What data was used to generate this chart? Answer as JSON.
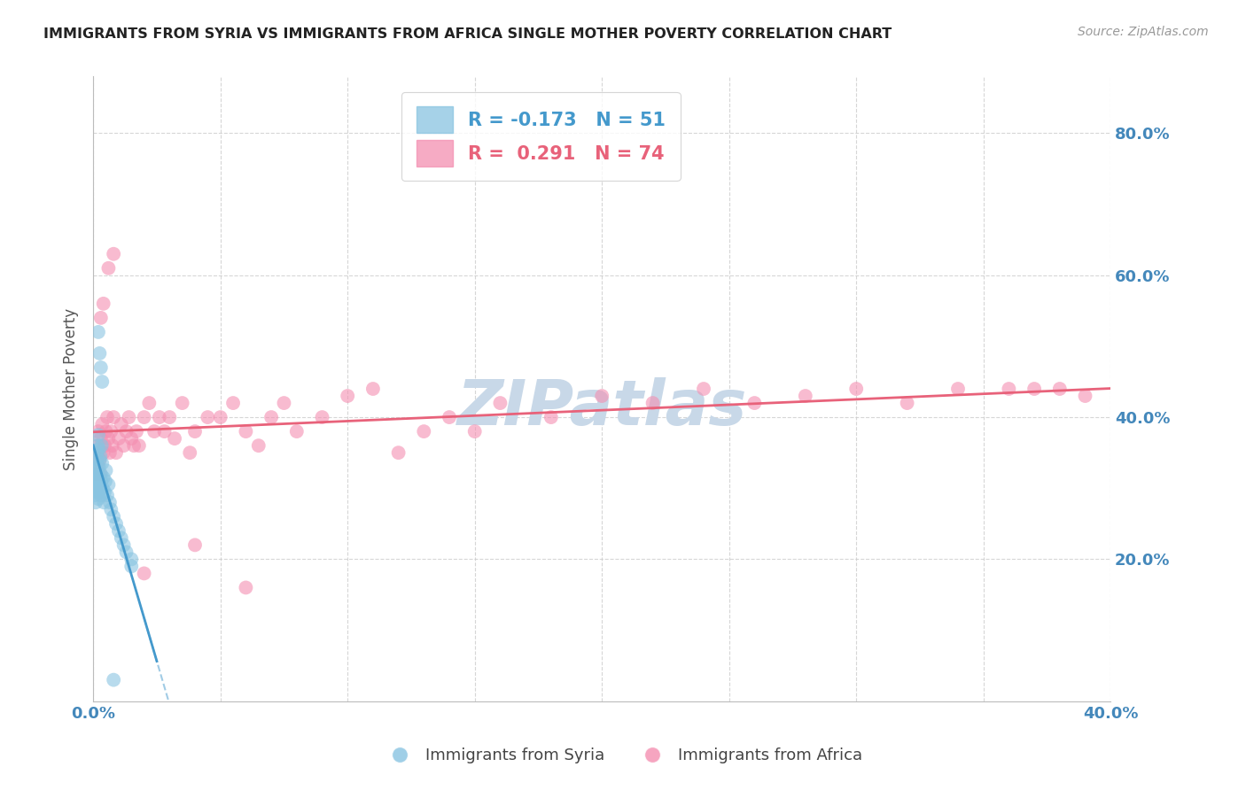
{
  "title": "IMMIGRANTS FROM SYRIA VS IMMIGRANTS FROM AFRICA SINGLE MOTHER POVERTY CORRELATION CHART",
  "source": "Source: ZipAtlas.com",
  "ylabel": "Single Mother Poverty",
  "right_yticks": [
    "80.0%",
    "60.0%",
    "40.0%",
    "20.0%"
  ],
  "right_ytick_vals": [
    0.8,
    0.6,
    0.4,
    0.2
  ],
  "xmin": 0.0,
  "xmax": 0.4,
  "ymin": 0.0,
  "ymax": 0.88,
  "syria_R": -0.173,
  "syria_N": 51,
  "africa_R": 0.291,
  "africa_N": 74,
  "syria_color": "#89c4e1",
  "africa_color": "#f48fb1",
  "syria_line_color": "#4499cc",
  "africa_line_color": "#e8627a",
  "syria_scatter_alpha": 0.6,
  "africa_scatter_alpha": 0.6,
  "background_color": "#ffffff",
  "grid_color": "#cccccc",
  "title_color": "#222222",
  "axis_label_color": "#4488bb",
  "watermark_text": "ZIPatlas",
  "watermark_color": "#c8d8e8",
  "syria_x": [
    0.0005,
    0.0006,
    0.0008,
    0.001,
    0.001,
    0.0012,
    0.0013,
    0.0015,
    0.0015,
    0.0016,
    0.0017,
    0.0018,
    0.0019,
    0.002,
    0.002,
    0.0021,
    0.0022,
    0.0023,
    0.0024,
    0.0025,
    0.0026,
    0.0027,
    0.0028,
    0.003,
    0.0031,
    0.0032,
    0.0033,
    0.0035,
    0.0037,
    0.004,
    0.0042,
    0.0045,
    0.0048,
    0.005,
    0.0055,
    0.006,
    0.0065,
    0.007,
    0.008,
    0.009,
    0.01,
    0.011,
    0.012,
    0.013,
    0.015,
    0.002,
    0.0025,
    0.003,
    0.0035,
    0.015,
    0.008
  ],
  "syria_y": [
    0.31,
    0.29,
    0.32,
    0.33,
    0.28,
    0.295,
    0.315,
    0.305,
    0.35,
    0.34,
    0.325,
    0.36,
    0.3,
    0.285,
    0.375,
    0.31,
    0.355,
    0.33,
    0.295,
    0.315,
    0.34,
    0.3,
    0.345,
    0.32,
    0.29,
    0.31,
    0.36,
    0.335,
    0.3,
    0.315,
    0.28,
    0.295,
    0.31,
    0.325,
    0.29,
    0.305,
    0.28,
    0.27,
    0.26,
    0.25,
    0.24,
    0.23,
    0.22,
    0.21,
    0.19,
    0.52,
    0.49,
    0.47,
    0.45,
    0.2,
    0.03
  ],
  "africa_x": [
    0.001,
    0.0015,
    0.0018,
    0.002,
    0.0022,
    0.0025,
    0.0028,
    0.003,
    0.0035,
    0.004,
    0.0045,
    0.005,
    0.0055,
    0.006,
    0.0065,
    0.007,
    0.0075,
    0.008,
    0.009,
    0.01,
    0.011,
    0.012,
    0.013,
    0.014,
    0.015,
    0.016,
    0.017,
    0.018,
    0.02,
    0.022,
    0.024,
    0.026,
    0.028,
    0.03,
    0.032,
    0.035,
    0.038,
    0.04,
    0.045,
    0.05,
    0.055,
    0.06,
    0.065,
    0.07,
    0.075,
    0.08,
    0.09,
    0.1,
    0.11,
    0.12,
    0.13,
    0.14,
    0.15,
    0.16,
    0.18,
    0.2,
    0.22,
    0.24,
    0.26,
    0.28,
    0.3,
    0.32,
    0.34,
    0.36,
    0.38,
    0.003,
    0.004,
    0.006,
    0.008,
    0.02,
    0.04,
    0.06,
    0.37,
    0.39
  ],
  "africa_y": [
    0.32,
    0.35,
    0.33,
    0.38,
    0.36,
    0.34,
    0.32,
    0.37,
    0.39,
    0.35,
    0.36,
    0.38,
    0.4,
    0.37,
    0.35,
    0.38,
    0.36,
    0.4,
    0.35,
    0.37,
    0.39,
    0.36,
    0.38,
    0.4,
    0.37,
    0.36,
    0.38,
    0.36,
    0.4,
    0.42,
    0.38,
    0.4,
    0.38,
    0.4,
    0.37,
    0.42,
    0.35,
    0.38,
    0.4,
    0.4,
    0.42,
    0.38,
    0.36,
    0.4,
    0.42,
    0.38,
    0.4,
    0.43,
    0.44,
    0.35,
    0.38,
    0.4,
    0.38,
    0.42,
    0.4,
    0.43,
    0.42,
    0.44,
    0.42,
    0.43,
    0.44,
    0.42,
    0.44,
    0.44,
    0.44,
    0.54,
    0.56,
    0.61,
    0.63,
    0.18,
    0.22,
    0.16,
    0.44,
    0.43
  ]
}
